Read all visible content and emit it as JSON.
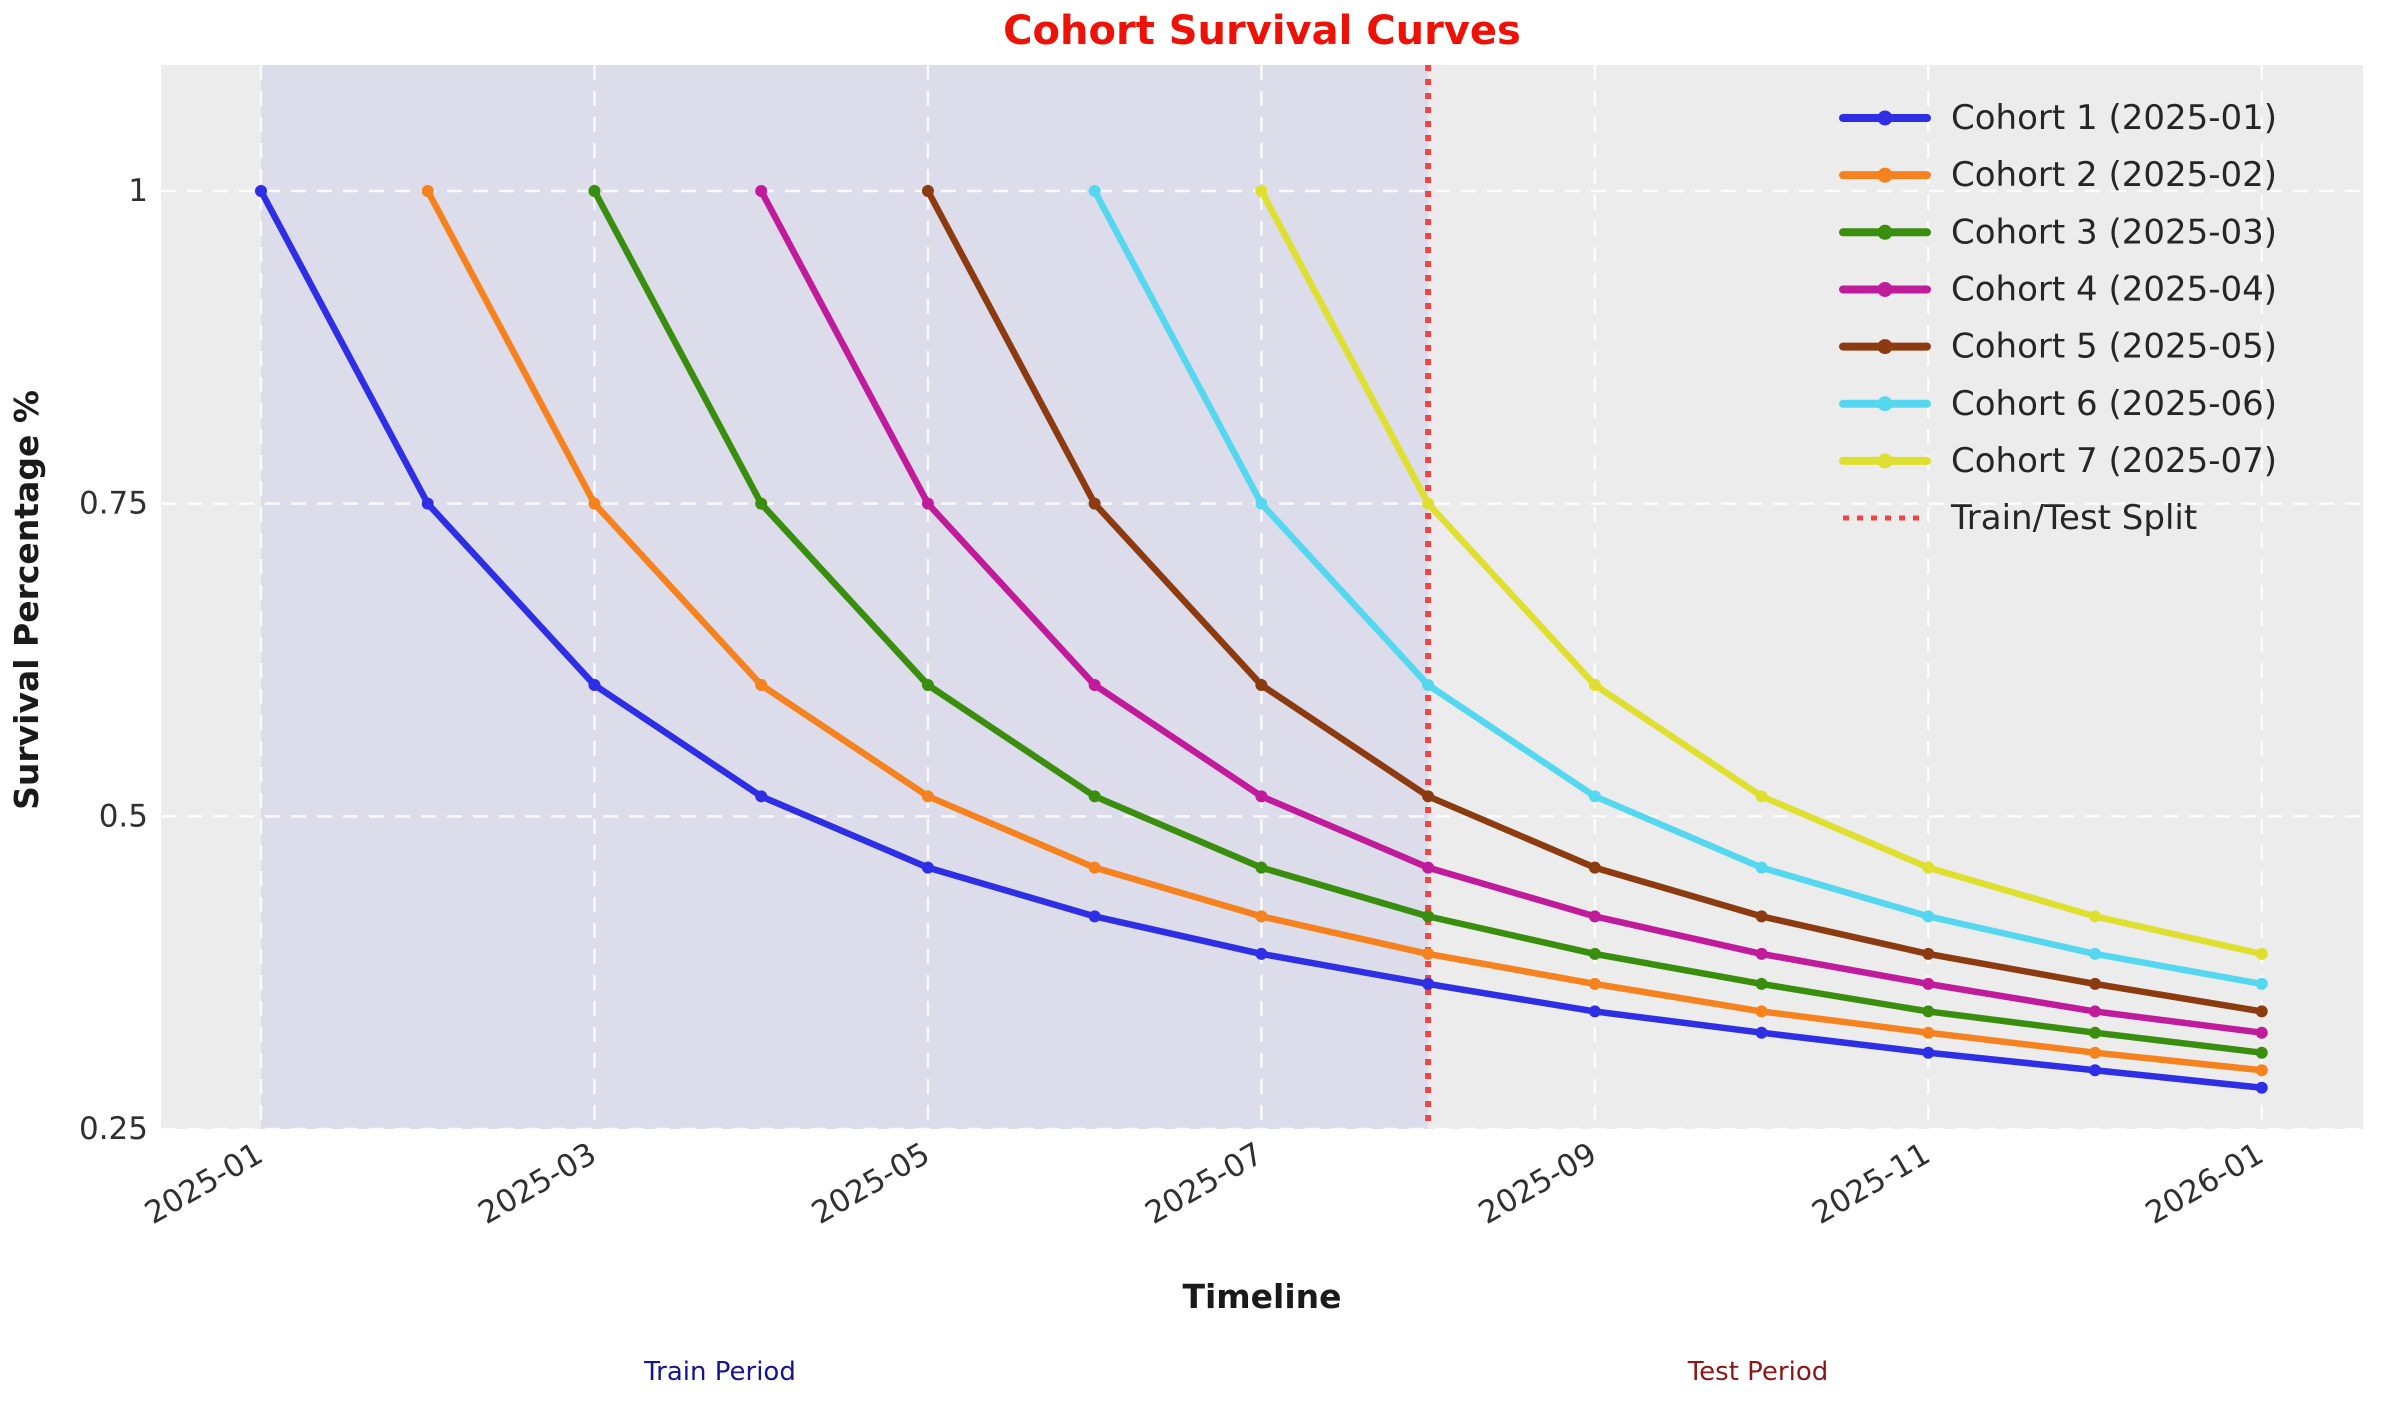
{
  "chart_data": {
    "type": "line",
    "title": "Cohort Survival Curves",
    "title_color": "#ee1107",
    "xlabel": "Timeline",
    "ylabel": "Survival Percentage %",
    "x_categories": [
      "2025-01",
      "2025-02",
      "2025-03",
      "2025-04",
      "2025-05",
      "2025-06",
      "2025-07",
      "2025-08",
      "2025-09",
      "2025-10",
      "2025-11",
      "2025-12",
      "2026-01"
    ],
    "xtick_labels": [
      "2025-01",
      "2025-03",
      "2025-05",
      "2025-07",
      "2025-09",
      "2025-11",
      "2026-01"
    ],
    "xtick_month_indices": [
      0,
      2,
      4,
      6,
      8,
      10,
      12
    ],
    "ytick_labels": [
      "1",
      "0.75",
      "0.5",
      "0.25"
    ],
    "yticks": [
      1.0,
      0.75,
      0.5,
      0.25
    ],
    "ylim": [
      0.25,
      1.1
    ],
    "grid": "white dashed on",
    "legend_position": "upper right",
    "plot_bg_color": "#ececec",
    "grid_color": "#ffffff",
    "tick_label_color": "#303030",
    "legend_text_color": "#262626",
    "series": [
      {
        "label": "Cohort 1 (2025-01)",
        "color": "#2e2ee4",
        "start_index": 0,
        "values": [
          1.0,
          0.75,
          0.605,
          0.516,
          0.459,
          0.42,
          0.39,
          0.366,
          0.344,
          0.327,
          0.311,
          0.297,
          0.283
        ]
      },
      {
        "label": "Cohort 2 (2025-02)",
        "color": "#f5821e",
        "start_index": 1,
        "values": [
          1.0,
          0.75,
          0.605,
          0.516,
          0.459,
          0.42,
          0.39,
          0.366,
          0.344,
          0.327,
          0.311,
          0.297
        ]
      },
      {
        "label": "Cohort 3 (2025-03)",
        "color": "#3a8e0e",
        "start_index": 2,
        "values": [
          1.0,
          0.75,
          0.605,
          0.516,
          0.459,
          0.42,
          0.39,
          0.366,
          0.344,
          0.327,
          0.311
        ]
      },
      {
        "label": "Cohort 4 (2025-04)",
        "color": "#c01b9b",
        "start_index": 3,
        "values": [
          1.0,
          0.75,
          0.605,
          0.516,
          0.459,
          0.42,
          0.39,
          0.366,
          0.344,
          0.327
        ]
      },
      {
        "label": "Cohort 5 (2025-05)",
        "color": "#8c3a10",
        "start_index": 4,
        "values": [
          1.0,
          0.75,
          0.605,
          0.516,
          0.459,
          0.42,
          0.39,
          0.366,
          0.344
        ]
      },
      {
        "label": "Cohort 6 (2025-06)",
        "color": "#55d8ef",
        "start_index": 5,
        "values": [
          1.0,
          0.75,
          0.605,
          0.516,
          0.459,
          0.42,
          0.39,
          0.366
        ]
      },
      {
        "label": "Cohort 7 (2025-07)",
        "color": "#dfdf30",
        "start_index": 6,
        "values": [
          1.0,
          0.75,
          0.605,
          0.516,
          0.459,
          0.42,
          0.39
        ]
      }
    ],
    "split": {
      "label": "Train/Test Split",
      "month": "2025-08",
      "month_index": 7,
      "color": "#f04343",
      "style": "dotted"
    },
    "train_region": {
      "from_month": "2025-01",
      "to_month": "2025-08",
      "from_index": 0,
      "to_index": 7,
      "fill": "#dcdcea"
    },
    "annotations": {
      "train": {
        "label": "Train Period",
        "color": "#15158d"
      },
      "test": {
        "label": "Test Period",
        "color": "#8d1515"
      }
    }
  }
}
